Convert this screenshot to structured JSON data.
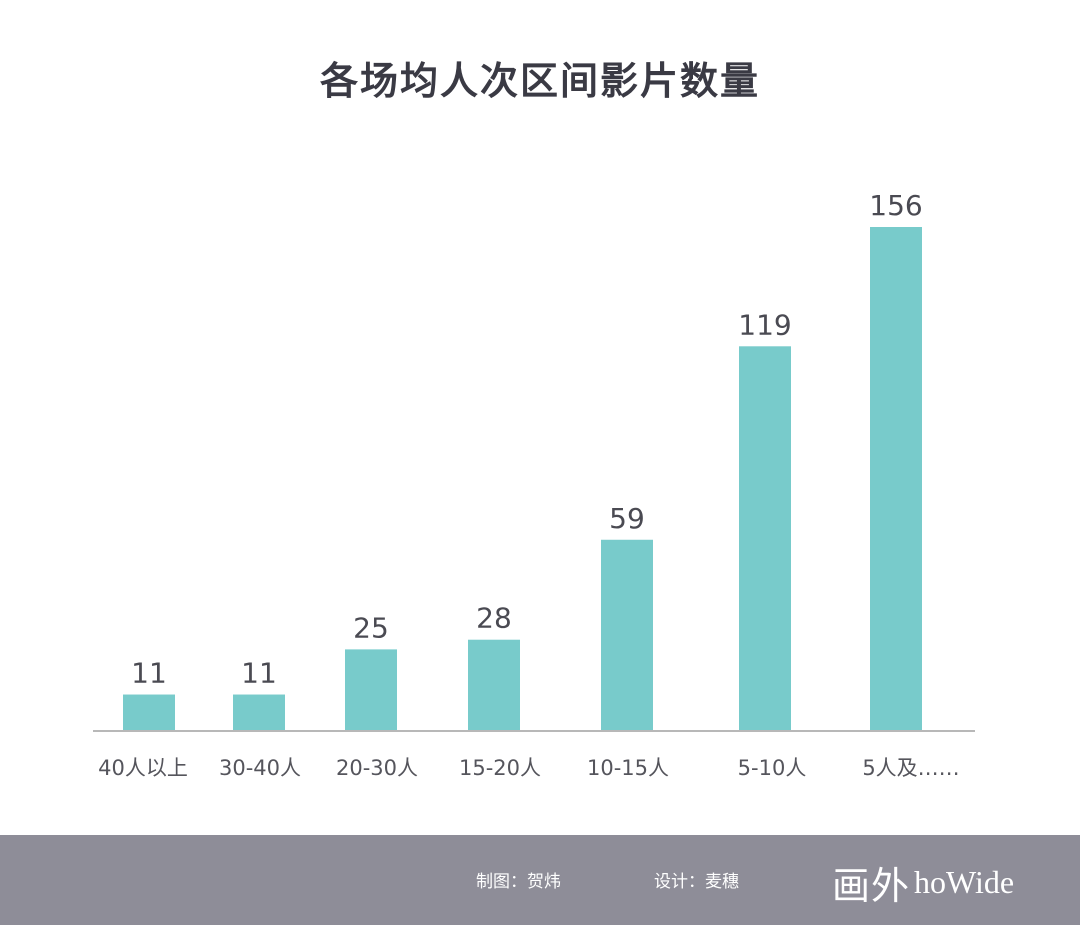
{
  "colors": {
    "bar": "#78cbcb",
    "axis": "#b8b8b8",
    "value_label": "#4a4a52",
    "category_label": "#55555c",
    "title": "#3a3a44",
    "footer_bg": "#8e8d98",
    "footer_text": "#ffffff"
  },
  "chart_data": {
    "type": "bar",
    "title": "各场均人次区间影片数量",
    "xlabel": "",
    "ylabel": "",
    "categories": [
      "40人以上",
      "30-40人",
      "20-30人",
      "15-20人",
      "10-15人",
      "5-10人",
      "5人及……"
    ],
    "values": [
      11,
      11,
      25,
      28,
      59,
      119,
      156
    ],
    "ylim": [
      0,
      156
    ],
    "grid": false,
    "legend": "none"
  },
  "footer": {
    "chart_credit": "制图：贺炜",
    "design_credit": "设计：麦穗",
    "brand_cn": "画外",
    "brand_en": "hoWide"
  }
}
